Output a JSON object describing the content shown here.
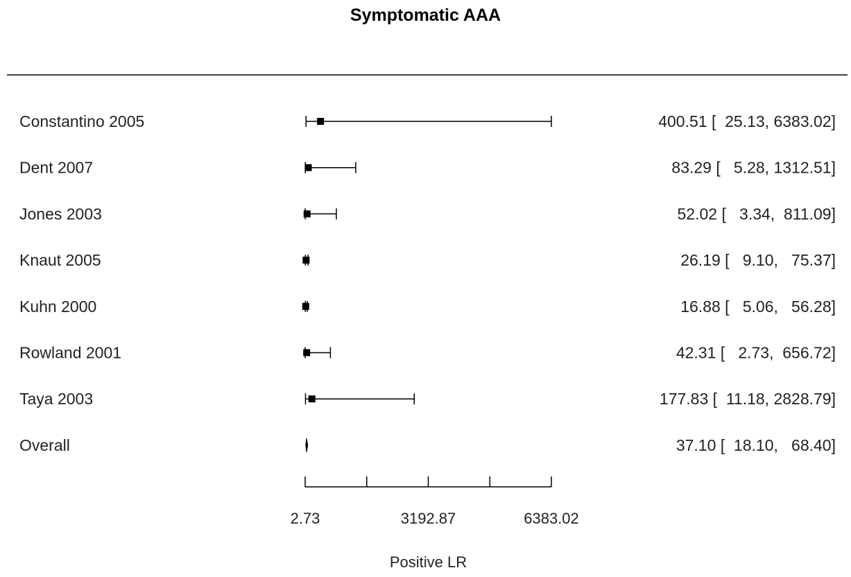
{
  "chart_data": {
    "type": "forest",
    "title": "Symptomatic AAA",
    "xlabel": "Positive LR",
    "xlim": [
      2.73,
      6383.02
    ],
    "xticks": [
      2.73,
      1597.8,
      3192.87,
      4787.95,
      6383.02
    ],
    "xtick_labels": [
      "2.73",
      "",
      "3192.87",
      "",
      "6383.02"
    ],
    "studies": [
      {
        "label": "Constantino 2005",
        "estimate": 400.51,
        "lower": 25.13,
        "upper": 6383.02,
        "text": "400.51 [  25.13, 6383.02]"
      },
      {
        "label": "Dent 2007",
        "estimate": 83.29,
        "lower": 5.28,
        "upper": 1312.51,
        "text": "83.29 [   5.28, 1312.51]"
      },
      {
        "label": "Jones 2003",
        "estimate": 52.02,
        "lower": 3.34,
        "upper": 811.09,
        "text": "52.02 [   3.34,  811.09]"
      },
      {
        "label": "Knaut 2005",
        "estimate": 26.19,
        "lower": 9.1,
        "upper": 75.37,
        "text": "26.19 [   9.10,   75.37]"
      },
      {
        "label": "Kuhn 2000",
        "estimate": 16.88,
        "lower": 5.06,
        "upper": 56.28,
        "text": "16.88 [   5.06,   56.28]"
      },
      {
        "label": "Rowland 2001",
        "estimate": 42.31,
        "lower": 2.73,
        "upper": 656.72,
        "text": "42.31 [   2.73,  656.72]"
      },
      {
        "label": "Taya 2003",
        "estimate": 177.83,
        "lower": 11.18,
        "upper": 2828.79,
        "text": "177.83 [  11.18, 2828.79]"
      }
    ],
    "overall": {
      "label": "Overall",
      "estimate": 37.1,
      "lower": 18.1,
      "upper": 68.4,
      "text": "37.10 [  18.10,   68.40]"
    }
  }
}
